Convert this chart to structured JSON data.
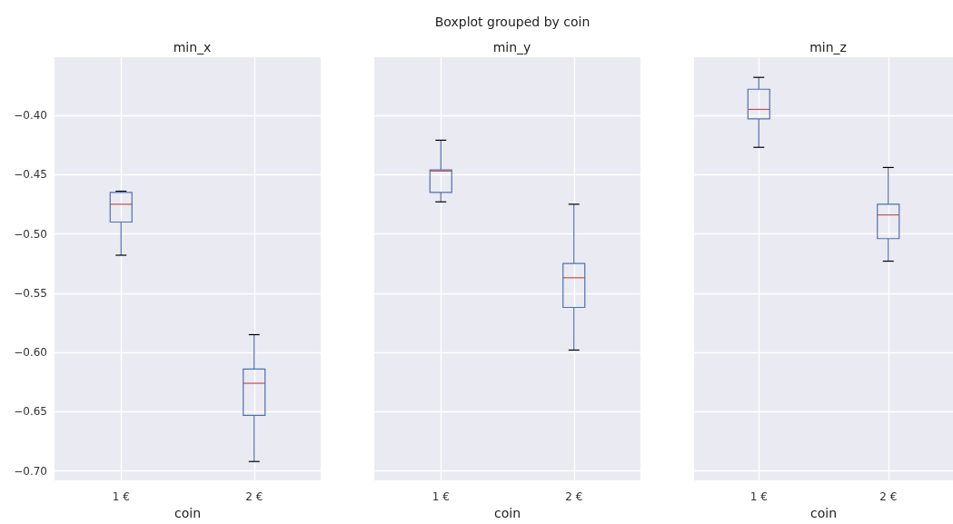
{
  "chart_data": [
    {
      "type": "box",
      "title": "min_x",
      "xlabel": "coin",
      "categories": [
        "1 €",
        "2 €"
      ],
      "annotations": [
        "Boxplot grouped by coin"
      ],
      "ylim": [
        -0.708,
        -0.351
      ],
      "yticks": [
        {
          "value": -0.4,
          "label": "−0.40"
        },
        {
          "value": -0.45,
          "label": "−0.45"
        },
        {
          "value": -0.5,
          "label": "−0.50"
        },
        {
          "value": -0.55,
          "label": "−0.55"
        },
        {
          "value": -0.6,
          "label": "−0.60"
        },
        {
          "value": -0.65,
          "label": "−0.65"
        },
        {
          "value": -0.7,
          "label": "−0.70"
        }
      ],
      "grid": true,
      "series": [
        {
          "color": "#4c72b0",
          "boxes": [
            {
              "low": -0.518,
              "q1": -0.49,
              "median": -0.475,
              "q3": -0.465,
              "high": -0.464
            },
            {
              "low": -0.692,
              "q1": -0.653,
              "median": -0.626,
              "q3": -0.614,
              "high": -0.585
            }
          ]
        }
      ]
    },
    {
      "type": "box",
      "title": "min_y",
      "xlabel": "coin",
      "categories": [
        "1 €",
        "2 €"
      ],
      "ylim": [
        -0.708,
        -0.351
      ],
      "yticks": [
        -0.4,
        -0.45,
        -0.5,
        -0.55,
        -0.6,
        -0.65,
        -0.7
      ],
      "tick_labels": "x",
      "grid": true,
      "series": [
        {
          "color": "#4c72b0",
          "boxes": [
            {
              "low": -0.473,
              "q1": -0.465,
              "median": -0.447,
              "q3": -0.446,
              "high": -0.421
            },
            {
              "low": -0.598,
              "q1": -0.562,
              "median": -0.537,
              "q3": -0.525,
              "high": -0.475
            }
          ]
        }
      ]
    },
    {
      "type": "box",
      "title": "min_z",
      "xlabel": "coin",
      "categories": [
        "1 €",
        "2 €"
      ],
      "ylim": [
        -0.708,
        -0.351
      ],
      "yticks": [
        -0.4,
        -0.45,
        -0.5,
        -0.55,
        -0.6,
        -0.65,
        -0.7
      ],
      "tick_labels": "x",
      "grid": true,
      "series": [
        {
          "color": "#4c72b0",
          "boxes": [
            {
              "low": -0.427,
              "q1": -0.403,
              "median": -0.395,
              "q3": -0.378,
              "high": -0.368
            },
            {
              "low": -0.523,
              "q1": -0.504,
              "median": -0.484,
              "q3": -0.475,
              "high": -0.444
            }
          ]
        }
      ]
    }
  ]
}
